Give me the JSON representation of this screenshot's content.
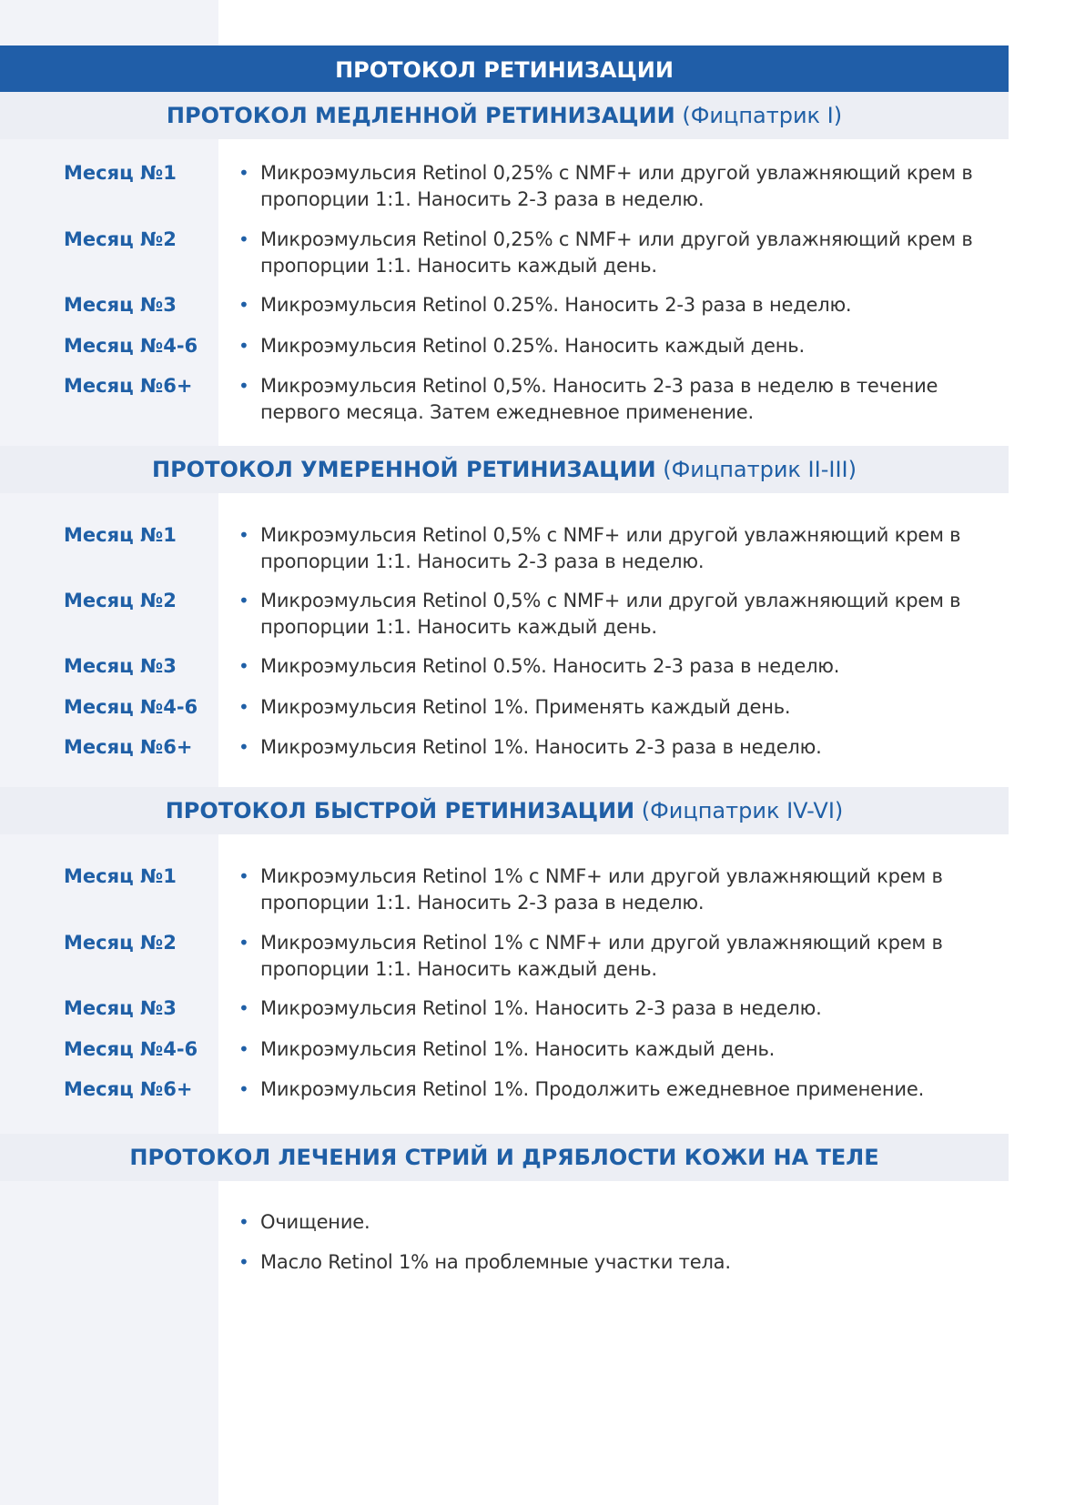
{
  "title": "ПРОТОКОЛ РЕТИНИЗАЦИИ",
  "colors": {
    "accent": "#205ea8",
    "section_bg": "#eceef4",
    "left_column_bg": "#f2f3f8",
    "text": "#333333"
  },
  "sections": [
    {
      "title": "ПРОТОКОЛ МЕДЛЕННОЙ РЕТИНИЗАЦИИ",
      "subtitle": "(Фицпатрик I)",
      "items": [
        {
          "label": "Месяц №1",
          "text": "Микроэмульсия Retinol 0,25% с NMF+ или другой увлажняющий крем в пропорции 1:1. Наносить 2-3 раза в неделю."
        },
        {
          "label": "Месяц №2",
          "text": "Микроэмульсия Retinol 0,25% с NMF+ или другой увлажняющий крем в пропорции 1:1. Наносить каждый день."
        },
        {
          "label": "Месяц №3",
          "text": "Микроэмульсия Retinol 0.25%. Наносить 2-3 раза в неделю."
        },
        {
          "label": "Месяц №4-6",
          "text": "Микроэмульсия Retinol 0.25%. Наносить каждый день."
        },
        {
          "label": "Месяц №6+",
          "text": "Микроэмульсия Retinol 0,5%. Наносить 2-3 раза в неделю в течение первого месяца. Затем ежедневное применение."
        }
      ]
    },
    {
      "title": "ПРОТОКОЛ УМЕРЕННОЙ РЕТИНИЗАЦИИ",
      "subtitle": "(Фицпатрик II-III)",
      "items": [
        {
          "label": "Месяц №1",
          "text": "Микроэмульсия Retinol 0,5% с NMF+ или другой увлажняющий крем в пропорции 1:1. Наносить 2-3 раза в неделю."
        },
        {
          "label": "Месяц №2",
          "text": "Микроэмульсия Retinol 0,5% с NMF+ или другой увлажняющий крем в пропорции 1:1. Наносить каждый день."
        },
        {
          "label": "Месяц №3",
          "text": "Микроэмульсия Retinol 0.5%. Наносить 2-3 раза в неделю."
        },
        {
          "label": "Месяц №4-6",
          "text": "Микроэмульсия Retinol 1%. Применять каждый день."
        },
        {
          "label": "Месяц №6+",
          "text": "Микроэмульсия Retinol 1%. Наносить 2-3 раза в неделю."
        }
      ]
    },
    {
      "title": "ПРОТОКОЛ БЫСТРОЙ РЕТИНИЗАЦИИ",
      "subtitle": "(Фицпатрик IV-VI)",
      "items": [
        {
          "label": "Месяц №1",
          "text": "Микроэмульсия Retinol 1% с NMF+ или другой увлажняющий крем в пропорции 1:1. Наносить 2-3 раза в неделю."
        },
        {
          "label": "Месяц №2",
          "text": "Микроэмульсия Retinol 1% с NMF+ или другой увлажняющий крем в пропорции 1:1. Наносить каждый день."
        },
        {
          "label": "Месяц №3",
          "text": "Микроэмульсия Retinol 1%. Наносить 2-3 раза в неделю."
        },
        {
          "label": "Месяц №4-6",
          "text": "Микроэмульсия Retinol 1%. Наносить каждый день."
        },
        {
          "label": "Месяц №6+",
          "text": "Микроэмульсия Retinol 1%. Продолжить ежедневное применение."
        }
      ]
    },
    {
      "title": "ПРОТОКОЛ ЛЕЧЕНИЯ СТРИЙ И ДРЯБЛОСТИ КОЖИ НА ТЕЛЕ",
      "subtitle": "",
      "items": [
        {
          "label": "",
          "text": "Очищение."
        },
        {
          "label": "",
          "text": "Масло Retinol 1% на проблемные участки тела."
        }
      ]
    }
  ]
}
